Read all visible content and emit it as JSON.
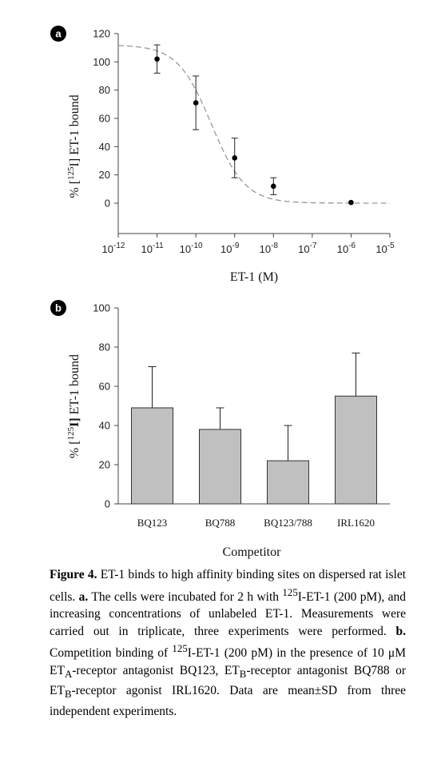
{
  "chart_data": [
    {
      "type": "scatter",
      "panel_label": "a",
      "xlabel": "ET-1 (M)",
      "ylabel": "% [125I] ET-1 bound",
      "x_scale": "log",
      "xlim": [
        1e-12,
        1e-05
      ],
      "ylim": [
        0,
        120
      ],
      "x_ticks": [
        {
          "base": "10",
          "exp": "-12"
        },
        {
          "base": "10",
          "exp": "-11"
        },
        {
          "base": "10",
          "exp": "-10"
        },
        {
          "base": "10",
          "exp": "-9"
        },
        {
          "base": "10",
          "exp": "-8"
        },
        {
          "base": "10",
          "exp": "-7"
        },
        {
          "base": "10",
          "exp": "-6"
        },
        {
          "base": "10",
          "exp": "-5"
        }
      ],
      "y_ticks": [
        "0",
        "20",
        "40",
        "60",
        "80",
        "100",
        "120"
      ],
      "points": [
        {
          "x": 1e-11,
          "y": 102,
          "err": 10
        },
        {
          "x": 1e-10,
          "y": 71,
          "err": 19
        },
        {
          "x": 1e-09,
          "y": 32,
          "err": 14
        },
        {
          "x": 1e-08,
          "y": 12,
          "err": 6
        },
        {
          "x": 1e-06,
          "y": 0.5,
          "err": 0
        }
      ],
      "fit": {
        "style": "dashed",
        "top": 112,
        "bottom": 0,
        "log_ic50": -9.6,
        "hill": 1.0
      }
    },
    {
      "type": "bar",
      "panel_label": "b",
      "xlabel": "Competitor",
      "ylabel": "% [125I] ET-1 bound",
      "ylim": [
        0,
        100
      ],
      "y_ticks": [
        "0",
        "20",
        "40",
        "60",
        "80",
        "100"
      ],
      "categories": [
        "BQ123",
        "BQ788",
        "BQ123/788",
        "IRL1620"
      ],
      "values": [
        49,
        38,
        22,
        55
      ],
      "errors": [
        21,
        11,
        18,
        22
      ]
    }
  ],
  "caption": {
    "fig_label": "Figure 4.",
    "s1": " ET-1 binds to high affinity binding sites on dispersed rat islet cells. ",
    "a_label": "a.",
    "s2": " The cells were incubated for 2 h with ",
    "sup_125": "125",
    "s3": "I-ET-1 (200 pM), and increasing concentrations of unlabeled ET-1. Measurements were carried out in triplicate, three experiments were performed. ",
    "b_label": "b.",
    "s4": " Competition binding of ",
    "s5": "I-ET-1 (200 pM) in the presence of 10 μM ET",
    "sub_a": "A",
    "s6": "-receptor antagonist BQ123, ET",
    "sub_b1": "B",
    "s7": "-receptor antagonist BQ788 or ET",
    "sub_b2": "B",
    "s8": "-receptor agonist IRL1620. Data are mean±SD from three independent experiments."
  },
  "colors": {
    "bar_fill": "#c0c0c0",
    "axis": "#444444",
    "curve": "#999999"
  }
}
